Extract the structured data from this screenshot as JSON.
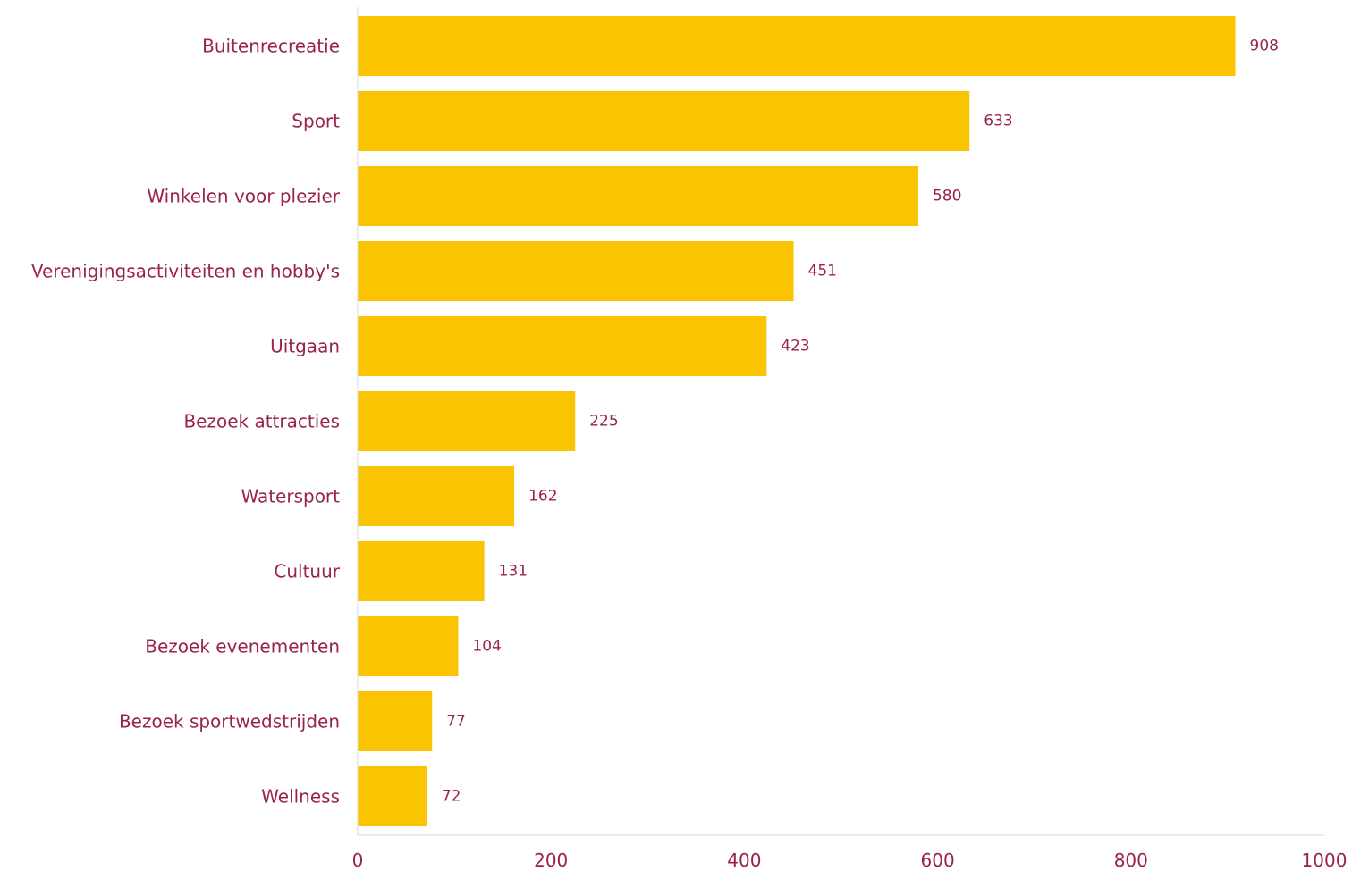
{
  "chart_data": {
    "type": "bar",
    "orientation": "horizontal",
    "categories": [
      "Buitenrecreatie",
      "Sport",
      "Winkelen voor plezier",
      "Verenigingsactiviteiten en hobby's",
      "Uitgaan",
      "Bezoek attracties",
      "Watersport",
      "Cultuur",
      "Bezoek evenementen",
      "Bezoek sportwedstrijden",
      "Wellness"
    ],
    "values": [
      908,
      633,
      580,
      451,
      423,
      225,
      162,
      131,
      104,
      77,
      72
    ],
    "xlim": [
      0,
      1000
    ],
    "xticks": [
      "0",
      "200",
      "400",
      "600",
      "800",
      "1000"
    ],
    "grid": false,
    "bar_color": "#fbc400",
    "text_color": "#9a2347",
    "axis_color": "#d9d9d9"
  }
}
